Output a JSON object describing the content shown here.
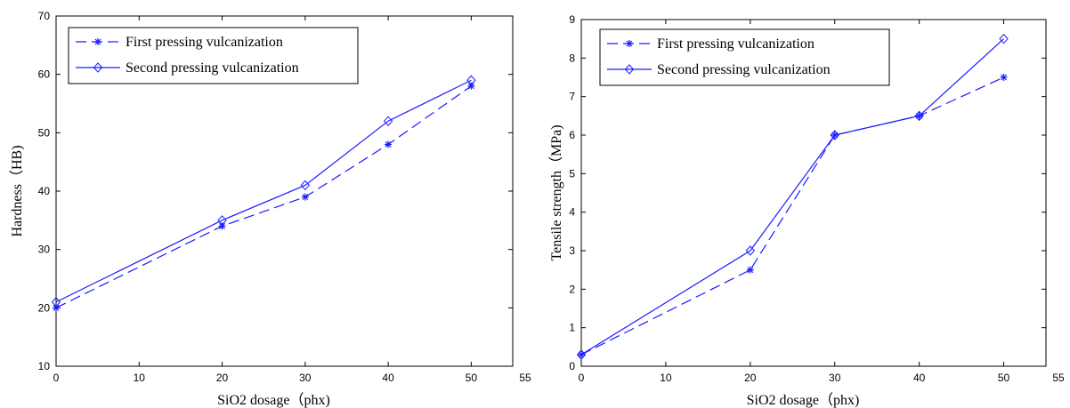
{
  "colors": {
    "series": "#1a1aff",
    "axis": "#000000",
    "background": "#ffffff"
  },
  "chart_data": [
    {
      "type": "line",
      "title": "",
      "xlabel": "SiO2 dosage（phx)",
      "ylabel": "Hardness（HB)",
      "xlim": [
        0,
        55
      ],
      "ylim": [
        10,
        70
      ],
      "xticks": [
        "0",
        "10",
        "20",
        "30",
        "40",
        "50",
        "55"
      ],
      "yticks": [
        "10",
        "20",
        "30",
        "40",
        "50",
        "60",
        "70"
      ],
      "grid": false,
      "legend_position": "top-left",
      "x": [
        0,
        20,
        30,
        40,
        50
      ],
      "series": [
        {
          "name": "First pressing vulcanization",
          "values": [
            20,
            34,
            39,
            48,
            58
          ],
          "marker": "asterisk",
          "dash": "dashed"
        },
        {
          "name": "Second pressing vulcanization",
          "values": [
            21,
            35,
            41,
            52,
            59
          ],
          "marker": "diamond",
          "dash": "solid"
        }
      ]
    },
    {
      "type": "line",
      "title": "",
      "xlabel": "SiO2 dosage（phx)",
      "ylabel": "Tensile strength（MPa)",
      "xlim": [
        0,
        55
      ],
      "ylim": [
        0,
        9
      ],
      "xticks": [
        "0",
        "10",
        "20",
        "30",
        "40",
        "50",
        "55"
      ],
      "yticks": [
        "0",
        "1",
        "2",
        "3",
        "4",
        "5",
        "6",
        "7",
        "8",
        "9"
      ],
      "grid": false,
      "legend_position": "top-left",
      "x": [
        0,
        20,
        30,
        40,
        50
      ],
      "series": [
        {
          "name": "First pressing vulcanization",
          "values": [
            0.3,
            2.5,
            6.0,
            6.5,
            7.5
          ],
          "marker": "asterisk",
          "dash": "dashed"
        },
        {
          "name": "Second pressing vulcanization",
          "values": [
            0.3,
            3.0,
            6.0,
            6.5,
            8.5
          ],
          "marker": "diamond",
          "dash": "solid"
        }
      ]
    }
  ]
}
